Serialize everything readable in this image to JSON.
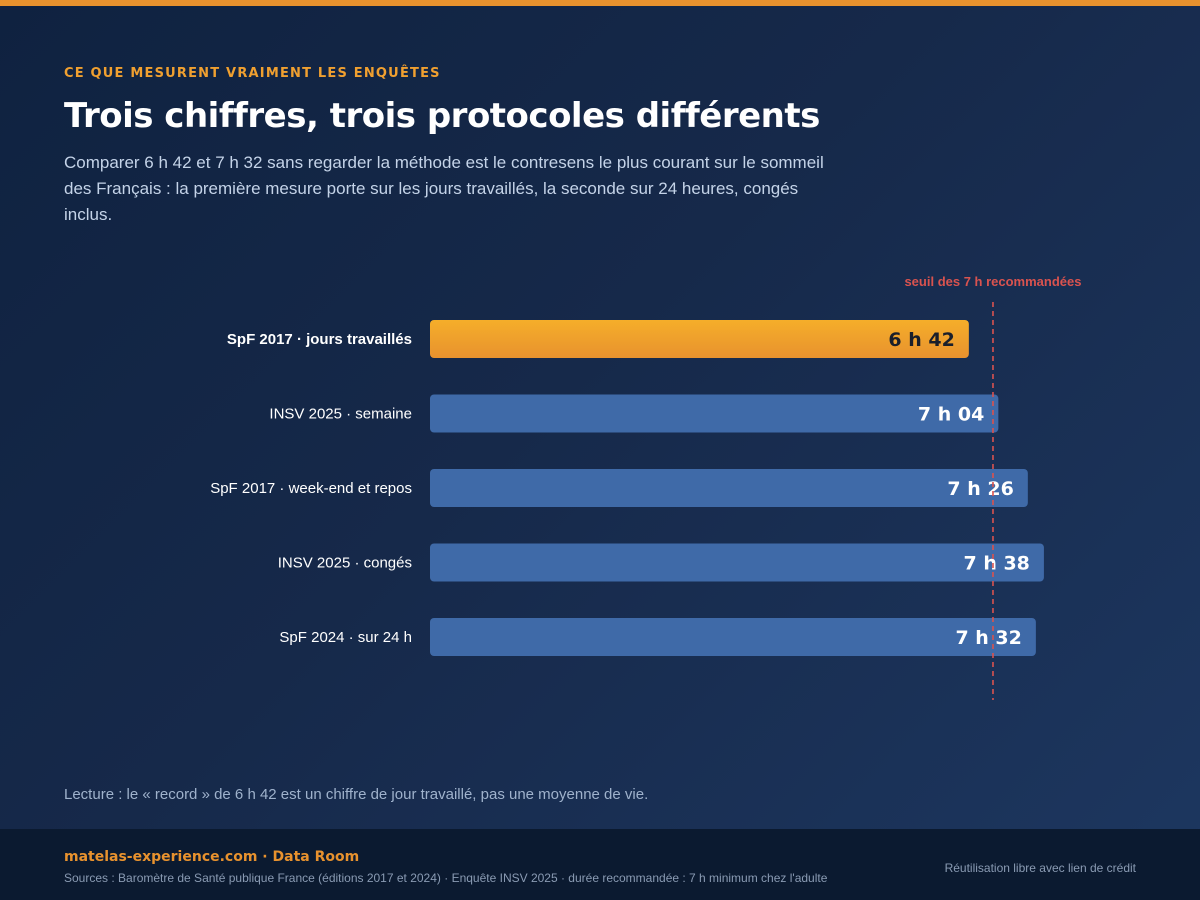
{
  "header": {
    "eyebrow": "CE QUE MESURENT VRAIMENT LES ENQUÊTES",
    "title": "Trois chiffres, trois protocoles différents",
    "subtitle": "Comparer 6 h 42 et 7 h 32 sans regarder la méthode est le contresens le plus courant sur le sommeil des Français : la première mesure porte sur les jours travaillés, la seconde sur 24 heures, congés inclus."
  },
  "chart_data": {
    "type": "bar",
    "orientation": "horizontal",
    "unit": "minutes",
    "categories": [
      "SpF 2017 · jours travaillés",
      "INSV 2025 · semaine",
      "SpF 2017 · week-end et repos",
      "INSV 2025 · congés",
      "SpF 2024 · sur 24 h"
    ],
    "values": [
      402,
      424,
      446,
      458,
      452
    ],
    "value_labels": [
      "6 h 42",
      "7 h 04",
      "7 h 26",
      "7 h 38",
      "7 h 32"
    ],
    "highlight_index": 0,
    "reference_line": {
      "value": 420,
      "label": "seuil des 7 h recommandées"
    },
    "xlim": [
      0,
      470
    ],
    "grid": false,
    "colors": {
      "highlight_top": "#f5ae2a",
      "highlight_bottom": "#e8922e",
      "bar": "#3f6aa8",
      "reference": "#d9534f",
      "label_dark": "#1a1f2b",
      "label_light": "#ffffff"
    }
  },
  "reading_note": "Lecture : le « record » de 6 h 42 est un chiffre de jour travaillé, pas une moyenne de vie.",
  "footer": {
    "brand": "matelas-experience.com · Data Room",
    "sources": "Sources : Baromètre de Santé publique France (éditions 2017 et 2024) · Enquête INSV 2025 · durée recommandée : 7 h minimum chez l'adulte",
    "license": "Réutilisation libre avec lien de crédit"
  }
}
